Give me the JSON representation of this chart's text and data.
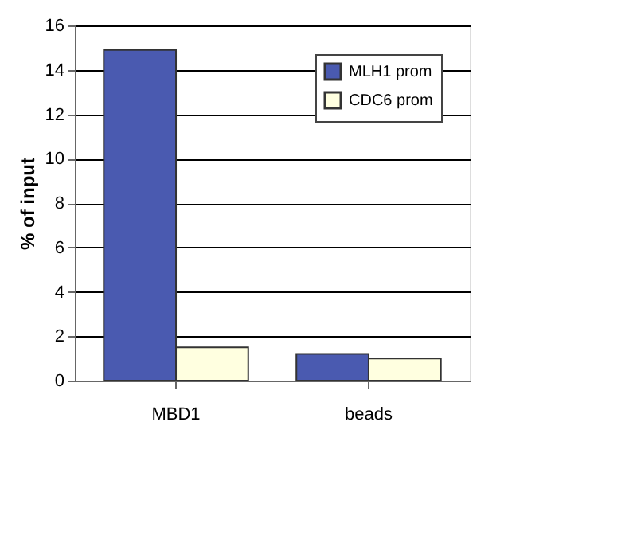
{
  "chart_data": {
    "type": "bar",
    "ylabel": "% of input",
    "categories": [
      "MBD1",
      "beads"
    ],
    "series": [
      {
        "name": "MLH1 prom",
        "color": "#4a5ab0",
        "values": [
          14.9,
          1.2
        ]
      },
      {
        "name": "CDC6 prom",
        "color": "#ffffe0",
        "values": [
          1.5,
          1.0
        ]
      }
    ],
    "ylim": [
      0,
      16
    ],
    "yticks": [
      0,
      2,
      4,
      6,
      8,
      10,
      12,
      14,
      16
    ],
    "grid": "y",
    "legend": "top right"
  }
}
